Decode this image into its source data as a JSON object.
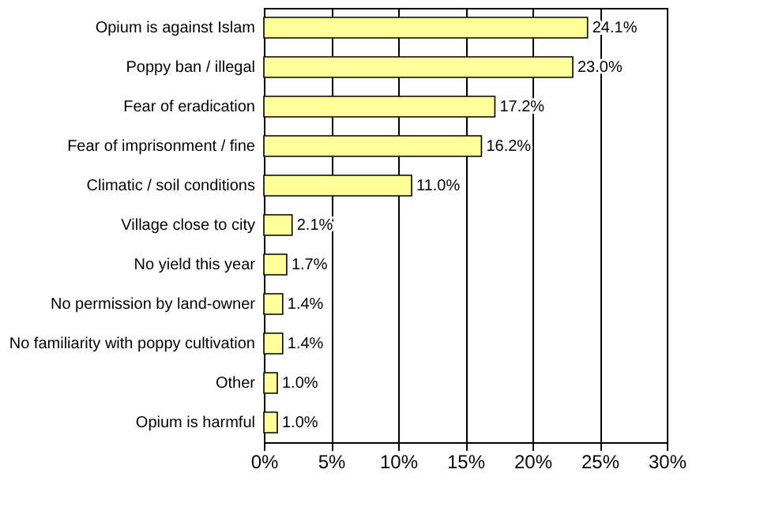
{
  "chart_data": {
    "type": "bar",
    "orientation": "horizontal",
    "categories": [
      "Opium is against Islam",
      "Poppy ban / illegal",
      "Fear of eradication",
      "Fear of imprisonment / fine",
      "Climatic / soil conditions",
      "Village close to city",
      "No yield this year",
      "No permission by land-owner",
      "No familiarity with poppy cultivation",
      "Other",
      "Opium is harmful"
    ],
    "values": [
      24.1,
      23.0,
      17.2,
      16.2,
      11.0,
      2.1,
      1.7,
      1.4,
      1.4,
      1.0,
      1.0
    ],
    "value_labels": [
      "24.1%",
      "23.0%",
      "17.2%",
      "16.2%",
      "11.0%",
      "2.1%",
      "1.7%",
      "1.4%",
      "1.4%",
      "1.0%",
      "1.0%"
    ],
    "color": "#ffff99",
    "xlim": [
      0,
      30
    ],
    "xticks": [
      {
        "value": 0,
        "label": "0%"
      },
      {
        "value": 5,
        "label": "5%"
      },
      {
        "value": 10,
        "label": "10%"
      },
      {
        "value": 15,
        "label": "15%"
      },
      {
        "value": 20,
        "label": "20%"
      },
      {
        "value": 25,
        "label": "25%"
      },
      {
        "value": 30,
        "label": "30%"
      }
    ],
    "grid": "x"
  }
}
